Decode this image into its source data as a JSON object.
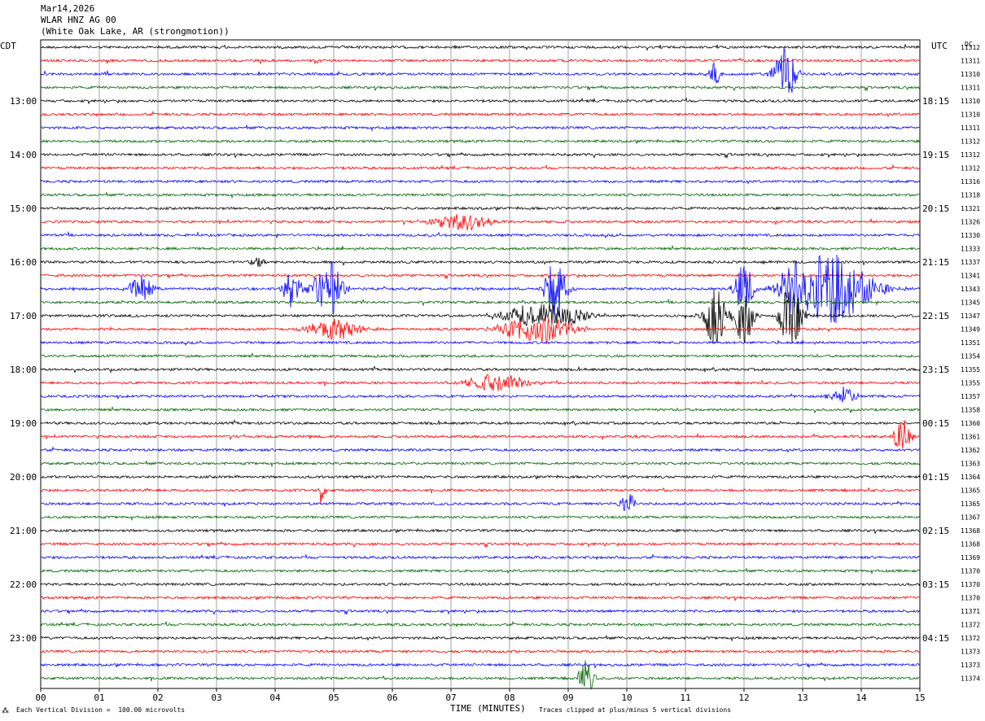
{
  "header": {
    "date": "Mar14,2026",
    "station": "WLAR HNZ AG 00",
    "location": "(White Oak Lake, AR (strongmotion))"
  },
  "left_timezone": "CDT",
  "right_timezone": "UTC",
  "dc_label": "DC",
  "footer": {
    "scale_note": "Each Vertical Division =  100.00 microvolts",
    "xlabel": "TIME (MINUTES)",
    "clip_note": "Traces clipped at plus/minus 5 vertical divisions",
    "logo_mark": "⁂"
  },
  "colors": {
    "trace_cycle": [
      "#000000",
      "#ff0000",
      "#0000ff",
      "#006400"
    ],
    "grid": "#a0a0a0"
  },
  "chart_data": {
    "type": "line",
    "title": "WLAR HNZ AG 00",
    "xlabel": "TIME (MINUTES)",
    "xlim": [
      0,
      15
    ],
    "x_ticks": [
      "00",
      "01",
      "02",
      "03",
      "04",
      "05",
      "06",
      "07",
      "08",
      "09",
      "10",
      "11",
      "12",
      "13",
      "14",
      "15"
    ],
    "left_hour_labels": [
      {
        "row": 4,
        "label": "13:00"
      },
      {
        "row": 8,
        "label": "14:00"
      },
      {
        "row": 12,
        "label": "15:00"
      },
      {
        "row": 16,
        "label": "16:00"
      },
      {
        "row": 20,
        "label": "17:00"
      },
      {
        "row": 24,
        "label": "18:00"
      },
      {
        "row": 28,
        "label": "19:00"
      },
      {
        "row": 32,
        "label": "20:00"
      },
      {
        "row": 36,
        "label": "21:00"
      },
      {
        "row": 40,
        "label": "22:00"
      },
      {
        "row": 44,
        "label": "23:00"
      }
    ],
    "right_hour_labels": [
      {
        "row": 4,
        "label": "18:15"
      },
      {
        "row": 8,
        "label": "19:15"
      },
      {
        "row": 12,
        "label": "20:15"
      },
      {
        "row": 16,
        "label": "21:15"
      },
      {
        "row": 20,
        "label": "22:15"
      },
      {
        "row": 24,
        "label": "23:15"
      },
      {
        "row": 28,
        "label": "00:15"
      },
      {
        "row": 32,
        "label": "01:15"
      },
      {
        "row": 36,
        "label": "02:15"
      },
      {
        "row": 40,
        "label": "03:15"
      },
      {
        "row": 44,
        "label": "04:15"
      }
    ],
    "dc_offsets": [
      "11312",
      "11311",
      "11310",
      "11311",
      "11310",
      "11310",
      "11311",
      "11312",
      "11312",
      "11312",
      "11316",
      "11318",
      "11321",
      "11326",
      "11330",
      "11333",
      "11337",
      "11341",
      "11343",
      "11345",
      "11347",
      "11349",
      "11351",
      "11354",
      "11355",
      "11355",
      "11357",
      "11358",
      "11360",
      "11361",
      "11362",
      "11363",
      "11364",
      "11365",
      "11365",
      "11367",
      "11368",
      "11368",
      "11369",
      "11370",
      "11370",
      "11370",
      "11371",
      "11372",
      "11372",
      "11373",
      "11373",
      "11374"
    ],
    "trace_count": 48,
    "events": [
      {
        "row": 2,
        "minute": 12.7,
        "amp": 0.8,
        "dur": 0.35
      },
      {
        "row": 2,
        "minute": 11.5,
        "amp": 0.35,
        "dur": 0.2
      },
      {
        "row": 13,
        "minute": 7.2,
        "amp": 0.25,
        "dur": 0.9
      },
      {
        "row": 16,
        "minute": 3.7,
        "amp": 0.2,
        "dur": 0.2
      },
      {
        "row": 18,
        "minute": 1.7,
        "amp": 0.35,
        "dur": 0.4
      },
      {
        "row": 18,
        "minute": 4.3,
        "amp": 0.6,
        "dur": 0.3
      },
      {
        "row": 18,
        "minute": 4.9,
        "amp": 0.85,
        "dur": 0.45
      },
      {
        "row": 18,
        "minute": 8.8,
        "amp": 0.95,
        "dur": 0.35
      },
      {
        "row": 18,
        "minute": 12.0,
        "amp": 0.7,
        "dur": 0.3
      },
      {
        "row": 18,
        "minute": 12.8,
        "amp": 0.8,
        "dur": 0.3
      },
      {
        "row": 18,
        "minute": 13.5,
        "amp": 1.0,
        "dur": 1.3
      },
      {
        "row": 20,
        "minute": 8.6,
        "amp": 0.35,
        "dur": 1.4
      },
      {
        "row": 20,
        "minute": 11.5,
        "amp": 0.9,
        "dur": 0.35
      },
      {
        "row": 20,
        "minute": 12.0,
        "amp": 0.85,
        "dur": 0.3
      },
      {
        "row": 20,
        "minute": 12.8,
        "amp": 0.95,
        "dur": 0.35
      },
      {
        "row": 21,
        "minute": 5.0,
        "amp": 0.3,
        "dur": 0.8
      },
      {
        "row": 21,
        "minute": 8.5,
        "amp": 0.4,
        "dur": 1.2
      },
      {
        "row": 25,
        "minute": 7.8,
        "amp": 0.25,
        "dur": 1.0
      },
      {
        "row": 26,
        "minute": 13.7,
        "amp": 0.3,
        "dur": 0.4
      },
      {
        "row": 29,
        "minute": 14.7,
        "amp": 0.45,
        "dur": 0.3
      },
      {
        "row": 33,
        "minute": 4.8,
        "amp": 0.5,
        "dur": 0.1
      },
      {
        "row": 34,
        "minute": 10.0,
        "amp": 0.35,
        "dur": 0.25
      },
      {
        "row": 47,
        "minute": 9.3,
        "amp": 0.5,
        "dur": 0.25
      }
    ]
  }
}
